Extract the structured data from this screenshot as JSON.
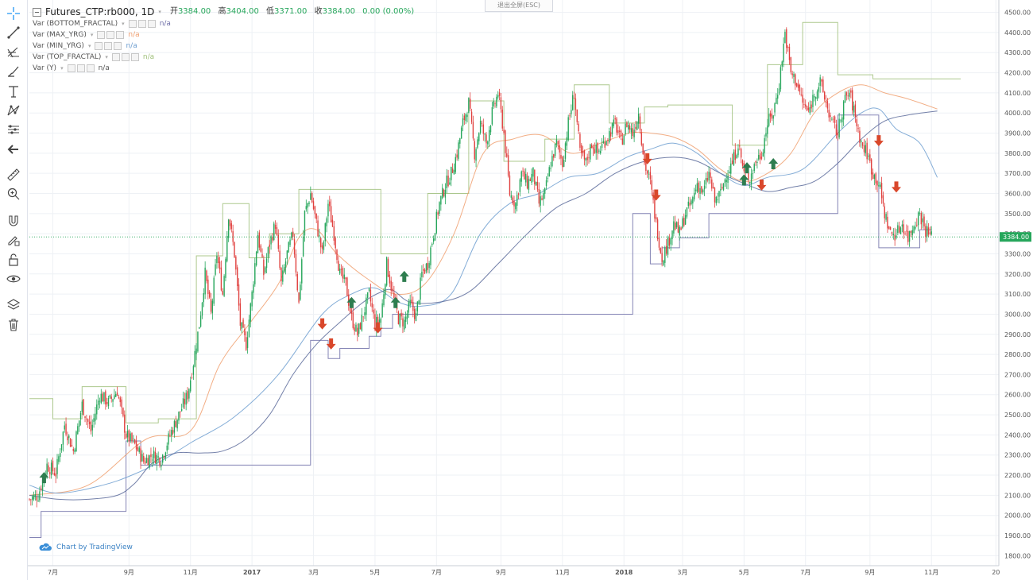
{
  "symbol": {
    "name": "Futures_CTP:rb000, 1D",
    "ohlc": [
      {
        "label": "开",
        "value": "3384.00"
      },
      {
        "label": "高",
        "value": "3404.00"
      },
      {
        "label": "低",
        "value": "3371.00"
      },
      {
        "label": "收",
        "value": "3384.00"
      }
    ],
    "change": "0.00 (0.00%)"
  },
  "indicators": [
    {
      "name": "Var (BOTTOM_FRACTAL)",
      "value": "n/a",
      "color": "#6f6fa8"
    },
    {
      "name": "Var (MAX_YRG)",
      "value": "n/a",
      "color": "#f0a070"
    },
    {
      "name": "Var (MIN_YRG)",
      "value": "n/a",
      "color": "#6f9fd0"
    },
    {
      "name": "Var (TOP_FRACTAL)",
      "value": "n/a",
      "color": "#9fc07a"
    },
    {
      "name": "Var (Y)",
      "value": "n/a",
      "color": "#555555"
    }
  ],
  "esc_hint": "退出全屏(ESC)",
  "watermark": "Chart by TradingView",
  "current_price": "3384.00",
  "chart_data": {
    "type": "candlestick",
    "yscale": {
      "min": 1750,
      "max": 4530
    },
    "yticks": [
      "4500.00",
      "4400.00",
      "4300.00",
      "4200.00",
      "4100.00",
      "4000.00",
      "3900.00",
      "3800.00",
      "3700.00",
      "3600.00",
      "3500.00",
      "3400.00",
      "3300.00",
      "3200.00",
      "3100.00",
      "3000.00",
      "2900.00",
      "2800.00",
      "2700.00",
      "2600.00",
      "2500.00",
      "2400.00",
      "2300.00",
      "2200.00",
      "2100.00",
      "2000.00",
      "1900.00",
      "1800.00"
    ],
    "xticks": [
      {
        "label": "7月",
        "t": 8
      },
      {
        "label": "9月",
        "t": 34
      },
      {
        "label": "11月",
        "t": 55
      },
      {
        "label": "2017",
        "t": 76
      },
      {
        "label": "3月",
        "t": 97
      },
      {
        "label": "5月",
        "t": 118
      },
      {
        "label": "7月",
        "t": 139
      },
      {
        "label": "9月",
        "t": 161
      },
      {
        "label": "11月",
        "t": 182
      },
      {
        "label": "2018",
        "t": 203
      },
      {
        "label": "3月",
        "t": 223
      },
      {
        "label": "5月",
        "t": 244
      },
      {
        "label": "7月",
        "t": 265
      },
      {
        "label": "9月",
        "t": 287
      },
      {
        "label": "11月",
        "t": 308
      },
      {
        "label": "20",
        "t": 330
      }
    ],
    "xrange": [
      0,
      331
    ],
    "close_anchors": [
      [
        0,
        2080
      ],
      [
        3,
        2100
      ],
      [
        6,
        2250
      ],
      [
        9,
        2210
      ],
      [
        12,
        2450
      ],
      [
        15,
        2320
      ],
      [
        18,
        2550
      ],
      [
        21,
        2420
      ],
      [
        24,
        2600
      ],
      [
        27,
        2560
      ],
      [
        30,
        2620
      ],
      [
        33,
        2400
      ],
      [
        36,
        2350
      ],
      [
        39,
        2270
      ],
      [
        42,
        2300
      ],
      [
        45,
        2280
      ],
      [
        48,
        2400
      ],
      [
        51,
        2500
      ],
      [
        54,
        2600
      ],
      [
        56,
        2760
      ],
      [
        58,
        2950
      ],
      [
        60,
        3200
      ],
      [
        62,
        3000
      ],
      [
        64,
        3300
      ],
      [
        66,
        3100
      ],
      [
        68,
        3500
      ],
      [
        70,
        3300
      ],
      [
        72,
        2950
      ],
      [
        74,
        2850
      ],
      [
        76,
        3100
      ],
      [
        78,
        3400
      ],
      [
        80,
        3200
      ],
      [
        82,
        3350
      ],
      [
        84,
        3450
      ],
      [
        86,
        3150
      ],
      [
        88,
        3300
      ],
      [
        90,
        3400
      ],
      [
        92,
        3050
      ],
      [
        94,
        3500
      ],
      [
        96,
        3600
      ],
      [
        98,
        3450
      ],
      [
        100,
        3300
      ],
      [
        102,
        3550
      ],
      [
        104,
        3400
      ],
      [
        106,
        3200
      ],
      [
        108,
        3150
      ],
      [
        110,
        2980
      ],
      [
        112,
        2900
      ],
      [
        114,
        3000
      ],
      [
        116,
        3100
      ],
      [
        118,
        2950
      ],
      [
        120,
        2980
      ],
      [
        122,
        3250
      ],
      [
        124,
        3100
      ],
      [
        126,
        2980
      ],
      [
        128,
        2960
      ],
      [
        130,
        3050
      ],
      [
        132,
        2990
      ],
      [
        134,
        3200
      ],
      [
        136,
        3250
      ],
      [
        138,
        3400
      ],
      [
        140,
        3550
      ],
      [
        142,
        3640
      ],
      [
        144,
        3700
      ],
      [
        146,
        3800
      ],
      [
        148,
        3950
      ],
      [
        150,
        4050
      ],
      [
        152,
        3800
      ],
      [
        154,
        3950
      ],
      [
        156,
        3850
      ],
      [
        158,
        4000
      ],
      [
        160,
        4100
      ],
      [
        162,
        3900
      ],
      [
        164,
        3600
      ],
      [
        166,
        3550
      ],
      [
        168,
        3700
      ],
      [
        170,
        3650
      ],
      [
        172,
        3700
      ],
      [
        174,
        3550
      ],
      [
        176,
        3600
      ],
      [
        178,
        3750
      ],
      [
        180,
        3850
      ],
      [
        182,
        3750
      ],
      [
        184,
        3950
      ],
      [
        186,
        4100
      ],
      [
        188,
        3800
      ],
      [
        190,
        3750
      ],
      [
        192,
        3850
      ],
      [
        194,
        3800
      ],
      [
        196,
        3850
      ],
      [
        198,
        3900
      ],
      [
        200,
        3950
      ],
      [
        202,
        3850
      ],
      [
        204,
        3950
      ],
      [
        206,
        3900
      ],
      [
        208,
        4000
      ],
      [
        210,
        3750
      ],
      [
        212,
        3650
      ],
      [
        214,
        3450
      ],
      [
        216,
        3280
      ],
      [
        218,
        3350
      ],
      [
        220,
        3450
      ],
      [
        222,
        3400
      ],
      [
        224,
        3500
      ],
      [
        226,
        3550
      ],
      [
        228,
        3650
      ],
      [
        230,
        3600
      ],
      [
        232,
        3700
      ],
      [
        234,
        3560
      ],
      [
        236,
        3600
      ],
      [
        238,
        3700
      ],
      [
        240,
        3750
      ],
      [
        242,
        3850
      ],
      [
        244,
        3700
      ],
      [
        246,
        3680
      ],
      [
        248,
        3760
      ],
      [
        250,
        3800
      ],
      [
        252,
        3950
      ],
      [
        254,
        4000
      ],
      [
        256,
        4150
      ],
      [
        258,
        4400
      ],
      [
        260,
        4200
      ],
      [
        262,
        4150
      ],
      [
        264,
        4050
      ],
      [
        266,
        4000
      ],
      [
        268,
        4100
      ],
      [
        270,
        4150
      ],
      [
        272,
        4050
      ],
      [
        274,
        3950
      ],
      [
        276,
        3900
      ],
      [
        278,
        4050
      ],
      [
        280,
        4100
      ],
      [
        282,
        3980
      ],
      [
        284,
        3850
      ],
      [
        286,
        3800
      ],
      [
        288,
        3700
      ],
      [
        290,
        3650
      ],
      [
        292,
        3500
      ],
      [
        294,
        3400
      ],
      [
        296,
        3400
      ],
      [
        298,
        3450
      ],
      [
        300,
        3380
      ],
      [
        302,
        3450
      ],
      [
        304,
        3500
      ],
      [
        306,
        3420
      ],
      [
        308,
        3384
      ]
    ],
    "top_fractal": [
      [
        0,
        2580
      ],
      [
        8,
        2580
      ],
      [
        8,
        2480
      ],
      [
        18,
        2480
      ],
      [
        18,
        2640
      ],
      [
        33,
        2640
      ],
      [
        33,
        2460
      ],
      [
        44,
        2460
      ],
      [
        44,
        2480
      ],
      [
        57,
        2480
      ],
      [
        57,
        3290
      ],
      [
        66,
        3290
      ],
      [
        66,
        3550
      ],
      [
        75,
        3550
      ],
      [
        75,
        3280
      ],
      [
        82,
        3280
      ],
      [
        82,
        3400
      ],
      [
        92,
        3400
      ],
      [
        92,
        3620
      ],
      [
        102,
        3620
      ],
      [
        102,
        3620
      ],
      [
        120,
        3620
      ],
      [
        120,
        3300
      ],
      [
        136,
        3300
      ],
      [
        136,
        3600
      ],
      [
        150,
        3600
      ],
      [
        150,
        4060
      ],
      [
        162,
        4060
      ],
      [
        162,
        3760
      ],
      [
        176,
        3760
      ],
      [
        176,
        3870
      ],
      [
        186,
        3870
      ],
      [
        186,
        4140
      ],
      [
        198,
        4140
      ],
      [
        198,
        3950
      ],
      [
        210,
        3950
      ],
      [
        210,
        4030
      ],
      [
        218,
        4030
      ],
      [
        218,
        4040
      ],
      [
        240,
        4040
      ],
      [
        240,
        3840
      ],
      [
        252,
        3840
      ],
      [
        252,
        4240
      ],
      [
        264,
        4240
      ],
      [
        264,
        4450
      ],
      [
        276,
        4450
      ],
      [
        276,
        4190
      ],
      [
        288,
        4190
      ],
      [
        288,
        4170
      ],
      [
        300,
        4170
      ],
      [
        300,
        4170
      ],
      [
        318,
        4170
      ]
    ],
    "bottom_fractal": [
      [
        0,
        1890
      ],
      [
        4,
        1890
      ],
      [
        4,
        2020
      ],
      [
        33,
        2020
      ],
      [
        33,
        2370
      ],
      [
        38,
        2370
      ],
      [
        38,
        2250
      ],
      [
        96,
        2250
      ],
      [
        96,
        2870
      ],
      [
        102,
        2870
      ],
      [
        102,
        2780
      ],
      [
        106,
        2780
      ],
      [
        106,
        2830
      ],
      [
        116,
        2830
      ],
      [
        116,
        2890
      ],
      [
        120,
        2890
      ],
      [
        120,
        2930
      ],
      [
        124,
        2930
      ],
      [
        124,
        3000
      ],
      [
        206,
        3000
      ],
      [
        206,
        3500
      ],
      [
        212,
        3500
      ],
      [
        212,
        3250
      ],
      [
        216,
        3250
      ],
      [
        216,
        3330
      ],
      [
        222,
        3330
      ],
      [
        222,
        3380
      ],
      [
        232,
        3380
      ],
      [
        232,
        3500
      ],
      [
        276,
        3500
      ],
      [
        276,
        3990
      ],
      [
        290,
        3990
      ],
      [
        290,
        3330
      ],
      [
        296,
        3330
      ],
      [
        296,
        3330
      ],
      [
        304,
        3330
      ],
      [
        304,
        3420
      ],
      [
        308,
        3420
      ]
    ],
    "max_yrg": [
      [
        0,
        2100
      ],
      [
        20,
        2150
      ],
      [
        40,
        2380
      ],
      [
        55,
        2420
      ],
      [
        65,
        2750
      ],
      [
        75,
        2950
      ],
      [
        85,
        3150
      ],
      [
        92,
        3380
      ],
      [
        98,
        3420
      ],
      [
        105,
        3300
      ],
      [
        115,
        3180
      ],
      [
        125,
        3100
      ],
      [
        135,
        3150
      ],
      [
        145,
        3400
      ],
      [
        155,
        3800
      ],
      [
        165,
        3870
      ],
      [
        175,
        3890
      ],
      [
        185,
        3800
      ],
      [
        195,
        3850
      ],
      [
        205,
        3900
      ],
      [
        212,
        3900
      ],
      [
        220,
        3880
      ],
      [
        228,
        3820
      ],
      [
        236,
        3720
      ],
      [
        244,
        3660
      ],
      [
        252,
        3700
      ],
      [
        260,
        3800
      ],
      [
        268,
        4000
      ],
      [
        276,
        4100
      ],
      [
        284,
        4140
      ],
      [
        292,
        4100
      ],
      [
        300,
        4070
      ],
      [
        310,
        4020
      ]
    ],
    "min_yrg": [
      [
        0,
        2150
      ],
      [
        10,
        2110
      ],
      [
        25,
        2150
      ],
      [
        35,
        2200
      ],
      [
        45,
        2270
      ],
      [
        55,
        2360
      ],
      [
        70,
        2490
      ],
      [
        85,
        2700
      ],
      [
        100,
        3000
      ],
      [
        110,
        3100
      ],
      [
        118,
        3130
      ],
      [
        126,
        3060
      ],
      [
        134,
        3040
      ],
      [
        144,
        3100
      ],
      [
        154,
        3400
      ],
      [
        164,
        3550
      ],
      [
        174,
        3600
      ],
      [
        184,
        3680
      ],
      [
        194,
        3700
      ],
      [
        204,
        3780
      ],
      [
        212,
        3820
      ],
      [
        220,
        3850
      ],
      [
        228,
        3800
      ],
      [
        236,
        3700
      ],
      [
        244,
        3640
      ],
      [
        252,
        3680
      ],
      [
        264,
        3720
      ],
      [
        276,
        3900
      ],
      [
        284,
        4000
      ],
      [
        290,
        4020
      ],
      [
        296,
        3920
      ],
      [
        304,
        3850
      ],
      [
        310,
        3680
      ]
    ],
    "y_line": [
      [
        0,
        2100
      ],
      [
        10,
        2080
      ],
      [
        20,
        2080
      ],
      [
        30,
        2100
      ],
      [
        36,
        2160
      ],
      [
        42,
        2260
      ],
      [
        50,
        2310
      ],
      [
        58,
        2310
      ],
      [
        66,
        2320
      ],
      [
        74,
        2380
      ],
      [
        82,
        2500
      ],
      [
        90,
        2700
      ],
      [
        98,
        2850
      ],
      [
        106,
        2960
      ],
      [
        114,
        3060
      ],
      [
        120,
        3110
      ],
      [
        124,
        3120
      ],
      [
        130,
        3060
      ],
      [
        140,
        3060
      ],
      [
        150,
        3110
      ],
      [
        160,
        3250
      ],
      [
        170,
        3400
      ],
      [
        180,
        3530
      ],
      [
        190,
        3600
      ],
      [
        200,
        3700
      ],
      [
        210,
        3760
      ],
      [
        220,
        3780
      ],
      [
        228,
        3760
      ],
      [
        236,
        3700
      ],
      [
        244,
        3650
      ],
      [
        252,
        3610
      ],
      [
        260,
        3630
      ],
      [
        268,
        3660
      ],
      [
        276,
        3750
      ],
      [
        284,
        3870
      ],
      [
        292,
        3960
      ],
      [
        300,
        3990
      ],
      [
        310,
        4010
      ]
    ],
    "signals": [
      {
        "t": 5,
        "type": "up",
        "price": 2180
      },
      {
        "t": 100,
        "type": "down",
        "price": 2960
      },
      {
        "t": 103,
        "type": "down",
        "price": 2860
      },
      {
        "t": 110,
        "type": "up",
        "price": 3050
      },
      {
        "t": 119,
        "type": "down",
        "price": 2940
      },
      {
        "t": 125,
        "type": "up",
        "price": 3050
      },
      {
        "t": 128,
        "type": "up",
        "price": 3180
      },
      {
        "t": 211,
        "type": "down",
        "price": 3780
      },
      {
        "t": 214,
        "type": "down",
        "price": 3600
      },
      {
        "t": 244,
        "type": "up",
        "price": 3660
      },
      {
        "t": 245,
        "type": "up",
        "price": 3720
      },
      {
        "t": 250,
        "type": "down",
        "price": 3650
      },
      {
        "t": 254,
        "type": "up",
        "price": 3740
      },
      {
        "t": 290,
        "type": "down",
        "price": 3870
      },
      {
        "t": 296,
        "type": "down",
        "price": 3640
      }
    ]
  }
}
